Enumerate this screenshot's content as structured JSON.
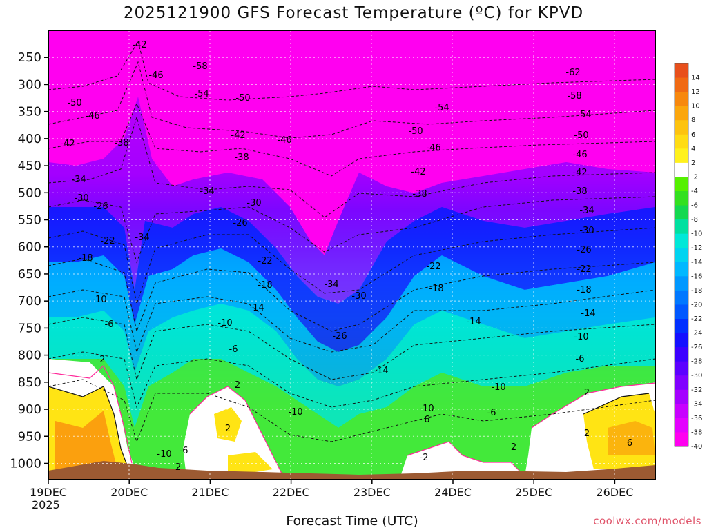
{
  "chart_data": {
    "type": "heatmap",
    "title": "2025121900 GFS Forecast Temperature (ºC) for KPVD",
    "xlabel": "Forecast Time (UTC)",
    "ylabel": "",
    "x_ticks": [
      "19DEC",
      "20DEC",
      "21DEC",
      "22DEC",
      "23DEC",
      "24DEC",
      "25DEC",
      "26DEC"
    ],
    "x_year": "2025",
    "xlim_days": [
      0,
      7.5
    ],
    "y_ticks": [
      250,
      300,
      350,
      400,
      450,
      500,
      550,
      600,
      650,
      700,
      750,
      800,
      850,
      900,
      950,
      1000
    ],
    "ylim": [
      200,
      1030
    ],
    "colorbar_labels": [
      14,
      12,
      10,
      8,
      6,
      4,
      2,
      -2,
      -4,
      -6,
      -8,
      -10,
      -12,
      -14,
      -16,
      -18,
      -20,
      -22,
      -24,
      -26,
      -28,
      -30,
      -32,
      -34,
      -36,
      -38,
      -40
    ],
    "colorbar_colors": [
      "#e8501c",
      "#f06a14",
      "#f7880e",
      "#fba60d",
      "#fdc30f",
      "#ffdc14",
      "#fff11c",
      "#ffffff",
      "#55f000",
      "#33e020",
      "#14d850",
      "#00e0a0",
      "#00e8d8",
      "#00d4f0",
      "#00b8ff",
      "#0098ff",
      "#0078ff",
      "#0058ff",
      "#0030ff",
      "#1410ff",
      "#3c00ff",
      "#5c00ff",
      "#8000ff",
      "#a400ff",
      "#c800ff",
      "#e400ff",
      "#ff00f0"
    ],
    "contour_labels": [
      -62,
      -58,
      -54,
      -50,
      -46,
      -42,
      -38,
      -34,
      -30,
      -26,
      -22,
      -18,
      -14,
      -10,
      -6,
      -2,
      2,
      6
    ]
  },
  "credit": "coolwx.com/models"
}
